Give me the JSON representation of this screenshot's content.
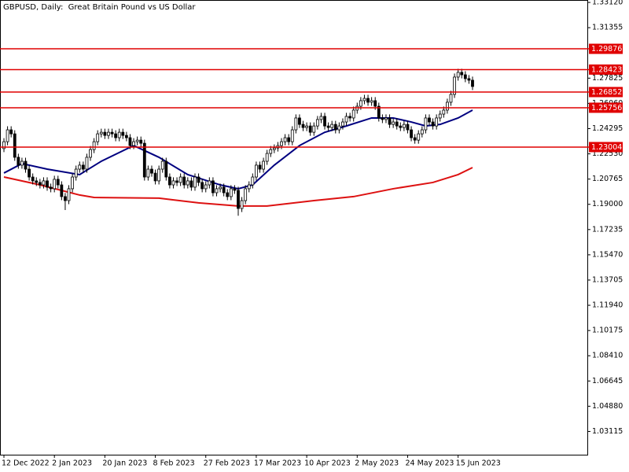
{
  "chart_data": {
    "type": "candlestick",
    "title": "GBPUSD, Daily:  Great Britain Pound vs US Dollar",
    "categories": [
      "12 Dec 2022",
      null,
      null,
      null,
      null,
      null,
      null,
      null,
      null,
      null,
      null,
      null,
      null,
      null,
      "2 Jan 2023",
      null,
      null,
      null,
      null,
      null,
      null,
      null,
      null,
      null,
      null,
      null,
      null,
      null,
      "20 Jan 2023",
      null,
      null,
      null,
      null,
      null,
      null,
      null,
      null,
      null,
      null,
      null,
      null,
      null,
      "8 Feb 2023",
      null,
      null,
      null,
      null,
      null,
      null,
      null,
      null,
      null,
      null,
      null,
      null,
      null,
      "27 Feb 2023",
      null,
      null,
      null,
      null,
      null,
      null,
      null,
      null,
      null,
      null,
      null,
      null,
      null,
      "17 Mar 2023",
      null,
      null,
      null,
      null,
      null,
      null,
      null,
      null,
      null,
      null,
      null,
      null,
      null,
      "10 Apr 2023",
      null,
      null,
      null,
      null,
      null,
      null,
      null,
      null,
      null,
      null,
      null,
      null,
      null,
      "2 May 2023",
      null,
      null,
      null,
      null,
      null,
      null,
      null,
      null,
      null,
      null,
      null,
      null,
      null,
      "24 May 2023",
      null,
      null,
      null,
      null,
      null,
      null,
      null,
      null,
      null,
      null,
      null,
      null,
      null,
      "15 Jun 2023",
      null,
      null,
      null,
      null
    ],
    "values": [
      [
        1.229,
        1.2363,
        1.2265,
        1.2338
      ],
      [
        1.2338,
        1.2446,
        1.2313,
        1.2421
      ],
      [
        1.2421,
        1.2446,
        1.2368,
        1.2393
      ],
      [
        1.2393,
        1.2418,
        1.2204,
        1.2229
      ],
      [
        1.2229,
        1.2254,
        1.2149,
        1.2174
      ],
      [
        1.2174,
        1.2226,
        1.2149,
        1.2201
      ],
      [
        1.2201,
        1.2226,
        1.2121,
        1.2146
      ],
      [
        1.2146,
        1.2171,
        1.2066,
        1.2091
      ],
      [
        1.2091,
        1.2116,
        1.2039,
        1.2064
      ],
      [
        1.2064,
        1.2089,
        1.2028,
        1.2053
      ],
      [
        1.2053,
        1.2078,
        1.2011,
        1.2036
      ],
      [
        1.2036,
        1.2089,
        1.2011,
        1.2064
      ],
      [
        1.2064,
        1.2089,
        1.1995,
        1.202
      ],
      [
        1.202,
        1.2045,
        1.1984,
        1.2009
      ],
      [
        1.2009,
        1.21,
        1.1984,
        1.2075
      ],
      [
        1.2075,
        1.21,
        1.2011,
        1.2036
      ],
      [
        1.2036,
        1.2061,
        1.1929,
        1.1954
      ],
      [
        1.1954,
        1.1979,
        1.186,
        1.1926
      ],
      [
        1.1926,
        1.2034,
        1.1901,
        1.2009
      ],
      [
        1.2009,
        1.2116,
        1.1984,
        1.2091
      ],
      [
        1.2091,
        1.2171,
        1.2066,
        1.2146
      ],
      [
        1.2146,
        1.2199,
        1.2121,
        1.2174
      ],
      [
        1.2174,
        1.2199,
        1.2121,
        1.2146
      ],
      [
        1.2146,
        1.2254,
        1.2121,
        1.2229
      ],
      [
        1.2229,
        1.2308,
        1.2204,
        1.2283
      ],
      [
        1.2283,
        1.2363,
        1.2258,
        1.2338
      ],
      [
        1.2338,
        1.2418,
        1.2313,
        1.2393
      ],
      [
        1.2393,
        1.2429,
        1.2368,
        1.2404
      ],
      [
        1.2404,
        1.2429,
        1.2357,
        1.2382
      ],
      [
        1.2382,
        1.2429,
        1.2357,
        1.2404
      ],
      [
        1.2404,
        1.2429,
        1.2368,
        1.2393
      ],
      [
        1.2393,
        1.2418,
        1.2341,
        1.2366
      ],
      [
        1.2366,
        1.2429,
        1.2341,
        1.2404
      ],
      [
        1.2404,
        1.2429,
        1.2357,
        1.2382
      ],
      [
        1.2382,
        1.2407,
        1.2341,
        1.2366
      ],
      [
        1.2366,
        1.2391,
        1.2286,
        1.2311
      ],
      [
        1.2311,
        1.2363,
        1.2286,
        1.2338
      ],
      [
        1.2338,
        1.2374,
        1.2313,
        1.2349
      ],
      [
        1.2349,
        1.2374,
        1.2302,
        1.2327
      ],
      [
        1.2327,
        1.2352,
        1.2066,
        1.2091
      ],
      [
        1.2091,
        1.2171,
        1.2066,
        1.2146
      ],
      [
        1.2146,
        1.2171,
        1.2093,
        1.2118
      ],
      [
        1.2118,
        1.2143,
        1.2039,
        1.2064
      ],
      [
        1.2064,
        1.2171,
        1.2039,
        1.2146
      ],
      [
        1.2146,
        1.2226,
        1.2121,
        1.2201
      ],
      [
        1.2201,
        1.2226,
        1.2066,
        1.2091
      ],
      [
        1.2091,
        1.2116,
        1.2011,
        1.2036
      ],
      [
        1.2036,
        1.2089,
        1.2011,
        1.2064
      ],
      [
        1.2064,
        1.2089,
        1.2028,
        1.2053
      ],
      [
        1.2053,
        1.2116,
        1.2028,
        1.2091
      ],
      [
        1.2091,
        1.2116,
        1.2011,
        1.2036
      ],
      [
        1.2036,
        1.2089,
        1.2011,
        1.2064
      ],
      [
        1.2064,
        1.2089,
        1.1995,
        1.202
      ],
      [
        1.202,
        1.2116,
        1.1995,
        1.2091
      ],
      [
        1.2091,
        1.2116,
        1.2028,
        1.2053
      ],
      [
        1.2053,
        1.2078,
        1.1984,
        1.2009
      ],
      [
        1.2009,
        1.2061,
        1.1984,
        1.2036
      ],
      [
        1.2036,
        1.2089,
        1.2011,
        1.2064
      ],
      [
        1.2064,
        1.2089,
        1.1956,
        1.1981
      ],
      [
        1.1981,
        1.2034,
        1.1956,
        1.2009
      ],
      [
        1.2009,
        1.2045,
        1.1984,
        1.202
      ],
      [
        1.202,
        1.2045,
        1.1956,
        1.1981
      ],
      [
        1.1981,
        1.2006,
        1.1929,
        1.1954
      ],
      [
        1.1954,
        1.2034,
        1.1929,
        1.2009
      ],
      [
        1.2009,
        1.2034,
        1.1973,
        1.1998
      ],
      [
        1.1998,
        1.2023,
        1.182,
        1.1871
      ],
      [
        1.1871,
        1.1951,
        1.1846,
        1.1926
      ],
      [
        1.1926,
        1.2034,
        1.1901,
        1.2009
      ],
      [
        1.2009,
        1.2061,
        1.1984,
        1.2036
      ],
      [
        1.2036,
        1.2116,
        1.2011,
        1.2091
      ],
      [
        1.2091,
        1.2199,
        1.2066,
        1.2174
      ],
      [
        1.2174,
        1.2199,
        1.2121,
        1.2146
      ],
      [
        1.2146,
        1.2226,
        1.2121,
        1.2201
      ],
      [
        1.2201,
        1.2281,
        1.2176,
        1.2256
      ],
      [
        1.2256,
        1.2308,
        1.2231,
        1.2283
      ],
      [
        1.2283,
        1.2319,
        1.2258,
        1.2294
      ],
      [
        1.2294,
        1.2336,
        1.2269,
        1.2311
      ],
      [
        1.2311,
        1.2363,
        1.2286,
        1.2338
      ],
      [
        1.2338,
        1.2391,
        1.2313,
        1.2366
      ],
      [
        1.2366,
        1.2391,
        1.2313,
        1.2338
      ],
      [
        1.2338,
        1.2446,
        1.2313,
        1.2421
      ],
      [
        1.2421,
        1.2529,
        1.2396,
        1.2504
      ],
      [
        1.2504,
        1.2529,
        1.2434,
        1.2459
      ],
      [
        1.2459,
        1.2484,
        1.2412,
        1.2437
      ],
      [
        1.2437,
        1.2473,
        1.2412,
        1.2448
      ],
      [
        1.2448,
        1.2473,
        1.2379,
        1.2404
      ],
      [
        1.2404,
        1.2473,
        1.2379,
        1.2448
      ],
      [
        1.2448,
        1.2518,
        1.2423,
        1.2493
      ],
      [
        1.2493,
        1.254,
        1.2468,
        1.2515
      ],
      [
        1.2515,
        1.254,
        1.2423,
        1.2448
      ],
      [
        1.2448,
        1.2473,
        1.2412,
        1.2437
      ],
      [
        1.2437,
        1.2484,
        1.2412,
        1.2459
      ],
      [
        1.2459,
        1.2484,
        1.2396,
        1.2421
      ],
      [
        1.2421,
        1.2473,
        1.2396,
        1.2448
      ],
      [
        1.2448,
        1.2501,
        1.2423,
        1.2476
      ],
      [
        1.2476,
        1.254,
        1.2451,
        1.2515
      ],
      [
        1.2515,
        1.254,
        1.2479,
        1.2504
      ],
      [
        1.2504,
        1.2584,
        1.2479,
        1.2559
      ],
      [
        1.2559,
        1.2611,
        1.2534,
        1.2586
      ],
      [
        1.2586,
        1.265,
        1.2561,
        1.2625
      ],
      [
        1.2625,
        1.2666,
        1.26,
        1.2641
      ],
      [
        1.2641,
        1.2666,
        1.2589,
        1.2614
      ],
      [
        1.2614,
        1.265,
        1.2589,
        1.2625
      ],
      [
        1.2625,
        1.265,
        1.2561,
        1.2586
      ],
      [
        1.2586,
        1.2611,
        1.2479,
        1.2504
      ],
      [
        1.2504,
        1.2529,
        1.2468,
        1.2493
      ],
      [
        1.2493,
        1.2529,
        1.2468,
        1.2504
      ],
      [
        1.2504,
        1.2529,
        1.2434,
        1.2459
      ],
      [
        1.2459,
        1.2501,
        1.2434,
        1.2476
      ],
      [
        1.2476,
        1.2501,
        1.2423,
        1.2448
      ],
      [
        1.2448,
        1.2473,
        1.2412,
        1.2437
      ],
      [
        1.2437,
        1.2484,
        1.2412,
        1.2459
      ],
      [
        1.2459,
        1.2484,
        1.2396,
        1.2421
      ],
      [
        1.2421,
        1.2446,
        1.2341,
        1.2366
      ],
      [
        1.2366,
        1.2391,
        1.2324,
        1.2349
      ],
      [
        1.2349,
        1.2418,
        1.2324,
        1.2393
      ],
      [
        1.2393,
        1.2446,
        1.2368,
        1.2421
      ],
      [
        1.2421,
        1.2529,
        1.2396,
        1.2504
      ],
      [
        1.2504,
        1.2529,
        1.2451,
        1.2476
      ],
      [
        1.2476,
        1.2501,
        1.2423,
        1.2448
      ],
      [
        1.2448,
        1.2529,
        1.2423,
        1.2504
      ],
      [
        1.2504,
        1.2556,
        1.2479,
        1.2531
      ],
      [
        1.2531,
        1.2584,
        1.2506,
        1.2559
      ],
      [
        1.2559,
        1.2639,
        1.2534,
        1.2614
      ],
      [
        1.2614,
        1.2694,
        1.2589,
        1.2669
      ],
      [
        1.2669,
        1.2815,
        1.2644,
        1.279
      ],
      [
        1.279,
        1.2848,
        1.2765,
        1.2823
      ],
      [
        1.2823,
        1.2848,
        1.2781,
        1.2806
      ],
      [
        1.2806,
        1.2831,
        1.2754,
        1.2779
      ],
      [
        1.2779,
        1.2804,
        1.2743,
        1.2768
      ],
      [
        1.2768,
        1.2793,
        1.2699,
        1.2724
      ]
    ],
    "up_color": "#ffffff",
    "down_color": "#000000",
    "ylim": [
      1.0149,
      1.3329
    ],
    "yticks": [
      {
        "value": 1.3312,
        "label": "1.33120"
      },
      1.31355,
      1.27825,
      {
        "value": 1.2606,
        "label": "1.26060"
      },
      1.24295,
      {
        "value": 1.2253,
        "label": "1.22530"
      },
      1.20765,
      {
        "value": 1.19,
        "label": "1.19000"
      },
      1.17235,
      {
        "value": 1.1547,
        "label": "1.15470"
      },
      1.13705,
      {
        "value": 1.1194,
        "label": "1.11940"
      },
      1.10175,
      {
        "value": 1.0841,
        "label": "1.08410"
      },
      1.06645,
      {
        "value": 1.0488,
        "label": "1.04880"
      },
      1.03115
    ],
    "overlays": [
      {
        "type": "line",
        "color": "#000080",
        "x": [
          0,
          5,
          12,
          21,
          27,
          36,
          43,
          51,
          60,
          65,
          69,
          75,
          82,
          89,
          95,
          102,
          108,
          113,
          117,
          121,
          126,
          130
        ],
        "values": [
          1.2119,
          1.2185,
          1.2146,
          1.2108,
          1.2201,
          1.2311,
          1.2229,
          1.2108,
          1.2036,
          1.2009,
          1.2036,
          1.2174,
          1.2311,
          1.2404,
          1.2448,
          1.2504,
          1.2504,
          1.2476,
          1.2448,
          1.2459,
          1.2504,
          1.2559
        ]
      },
      {
        "type": "line",
        "color": "#dd1111",
        "x": [
          0,
          10,
          21,
          25,
          43,
          54,
          65,
          73,
          86,
          97,
          108,
          119,
          126,
          130
        ],
        "values": [
          1.2091,
          1.2036,
          1.1965,
          1.1948,
          1.1943,
          1.191,
          1.1888,
          1.1888,
          1.1926,
          1.1954,
          1.2009,
          1.2053,
          1.2108,
          1.2157
        ]
      }
    ],
    "levels": [
      {
        "value": 1.29876,
        "color": "#e00000"
      },
      {
        "value": 1.28423,
        "color": "#e00000"
      },
      {
        "value": 1.26852,
        "color": "#e00000"
      },
      {
        "value": 1.25756,
        "color": "#e00000"
      },
      {
        "value": 1.23004,
        "color": "#e00000"
      }
    ]
  }
}
